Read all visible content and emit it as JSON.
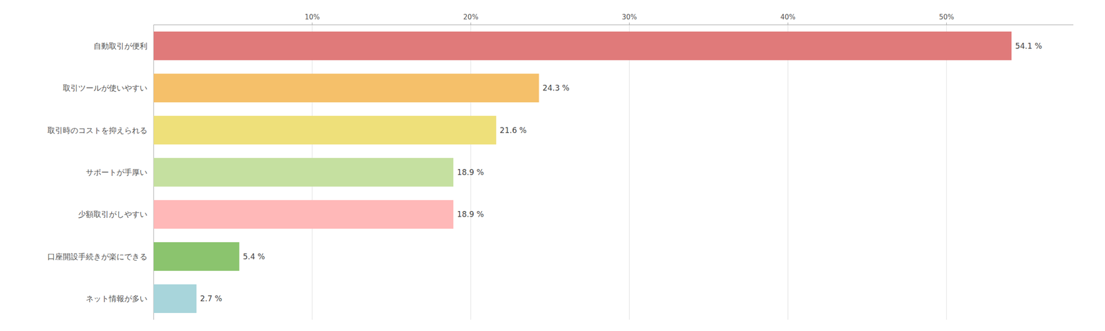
{
  "chart_data": {
    "type": "bar",
    "orientation": "horizontal",
    "categories": [
      "自動取引が便利",
      "取引ツールが使いやすい",
      "取引時のコストを抑えられる",
      "サポートが手厚い",
      "少額取引がしやすい",
      "口座開設手続きが楽にできる",
      "ネット情報が多い"
    ],
    "values": [
      54.1,
      24.3,
      21.6,
      18.9,
      18.9,
      5.4,
      2.7
    ],
    "value_labels": [
      "54.1 %",
      "24.3 %",
      "21.6 %",
      "18.9 %",
      "18.9 %",
      "5.4 %",
      "2.7 %"
    ],
    "colors": [
      "#e07a7a",
      "#f5c06a",
      "#eee07a",
      "#c5e0a0",
      "#ffb8b8",
      "#8bc46e",
      "#a8d5db"
    ],
    "xlim": [
      0,
      58
    ],
    "xticks": [
      {
        "value": 10,
        "label": "10%"
      },
      {
        "value": 20,
        "label": "20%"
      },
      {
        "value": 30,
        "label": "30%"
      },
      {
        "value": 40,
        "label": "40%"
      },
      {
        "value": 50,
        "label": "50%"
      }
    ],
    "grid": true,
    "data_labels": true
  }
}
